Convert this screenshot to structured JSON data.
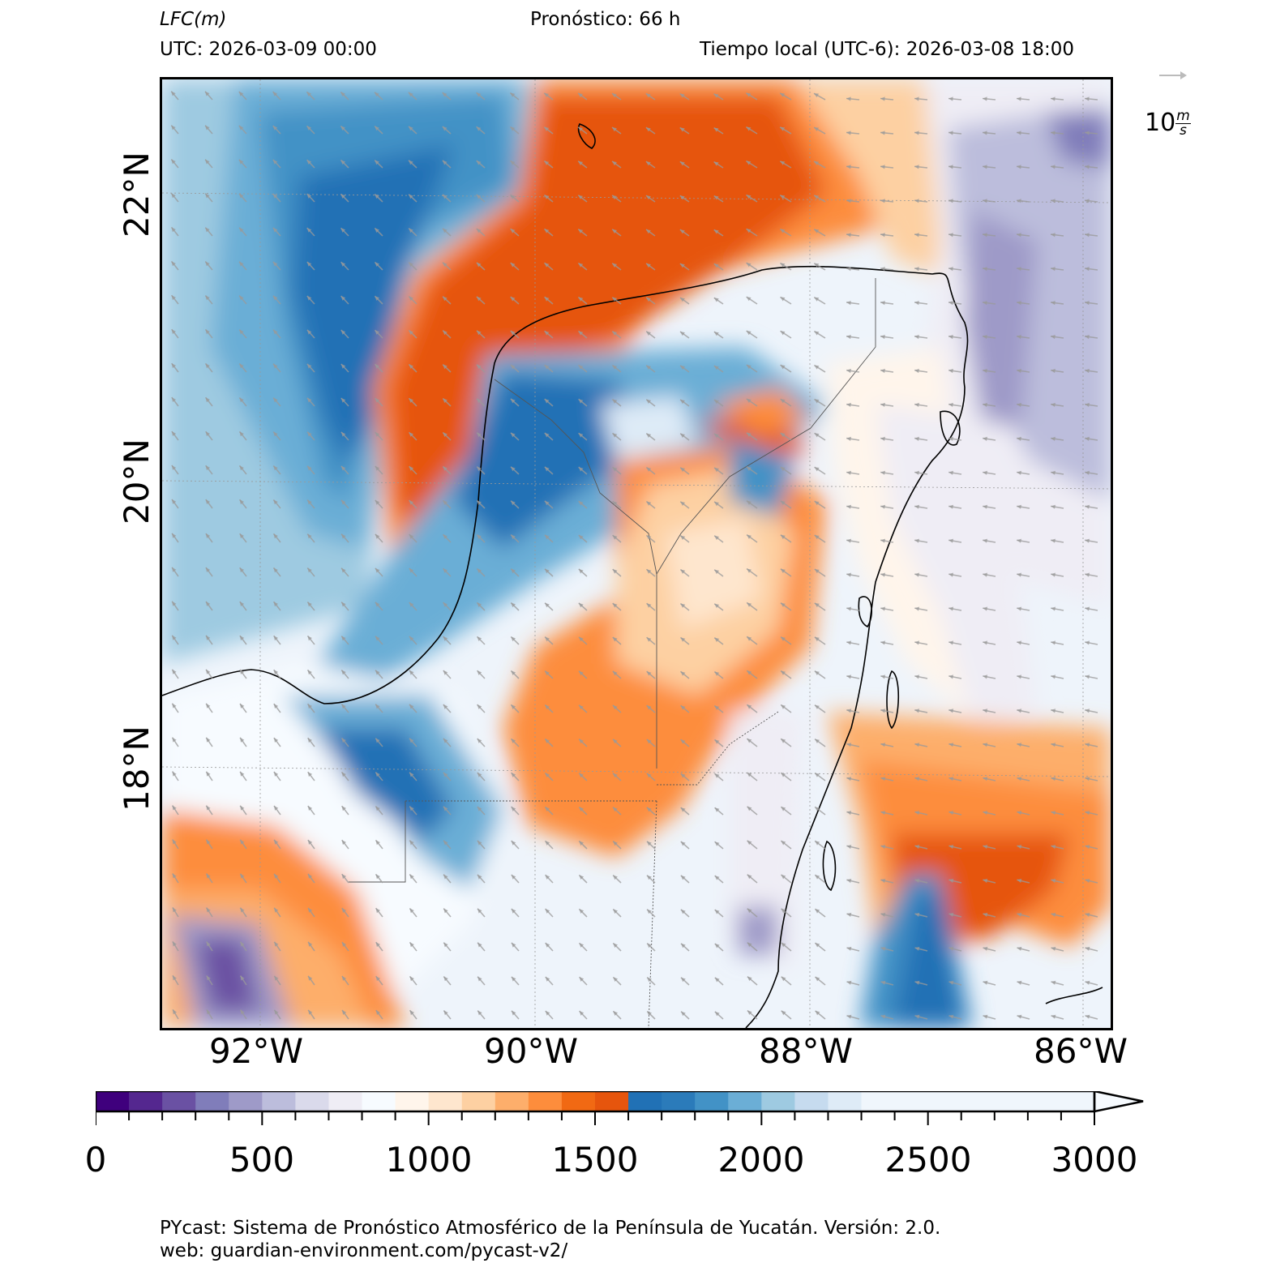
{
  "header": {
    "variable": "LFC",
    "unit": "(m)",
    "forecast": "Pronóstico: 66 h",
    "utc": "UTC:  2026-03-09 00:00",
    "local_time": "Tiempo local (UTC-6): 2026-03-08 18:00"
  },
  "map": {
    "lat_labels": [
      "22°N",
      "20°N",
      "18°N"
    ],
    "lon_labels": [
      "92°W",
      "90°W",
      "88°W",
      "86°W"
    ],
    "wind_reference": {
      "value": "10",
      "unit_num": "m",
      "unit_den": "s"
    }
  },
  "colorbar": {
    "tick_labels": [
      "0",
      "500",
      "1000",
      "1500",
      "2000",
      "2500",
      "3000"
    ],
    "colors": [
      "#3f007d",
      "#54278f",
      "#6a51a3",
      "#807dba",
      "#9e9ac8",
      "#bcbddc",
      "#dadaeb",
      "#efedf5",
      "#f7fbff",
      "#fff5eb",
      "#fee6ce",
      "#fdd0a2",
      "#fdae6b",
      "#fd8d3c",
      "#f16913",
      "#e6550d",
      "#2171b5",
      "#2b7bba",
      "#4292c6",
      "#6baed6",
      "#9ecae1",
      "#c6dbef",
      "#deebf7",
      "#f0f6fc"
    ]
  },
  "footer": {
    "line1": "PYcast: Sistema de Pronóstico Atmosférico de la Península de Yucatán. Versión: 2.0.",
    "line2": "web: guardian-environment.com/pycast-v2/"
  }
}
